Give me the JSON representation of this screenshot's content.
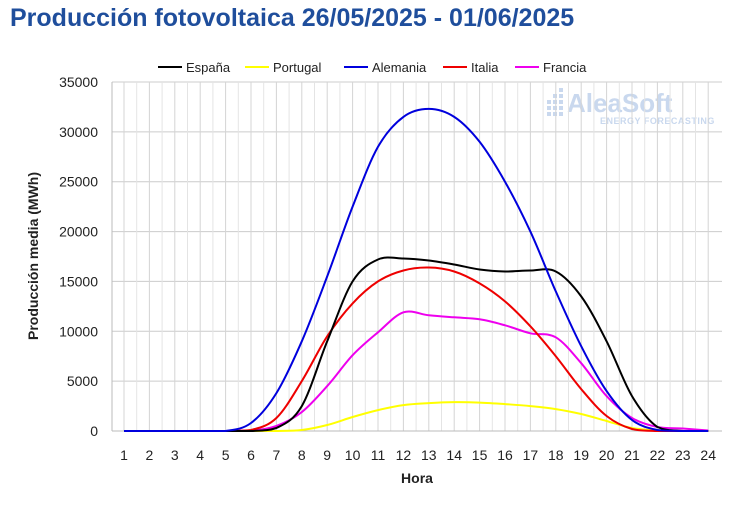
{
  "chart_data": {
    "type": "line",
    "title": "Producción fotovoltaica 26/05/2025 - 01/06/2025",
    "xlabel": "Hora",
    "ylabel": "Producción media (MWh)",
    "x": [
      1,
      2,
      3,
      4,
      5,
      6,
      7,
      8,
      9,
      10,
      11,
      12,
      13,
      14,
      15,
      16,
      17,
      18,
      19,
      20,
      21,
      22,
      23,
      24
    ],
    "xlim": [
      1,
      24
    ],
    "ylim": [
      0,
      35000
    ],
    "yticks": [
      0,
      5000,
      10000,
      15000,
      20000,
      25000,
      30000,
      35000
    ],
    "grid": true,
    "legend_position": "top",
    "series": [
      {
        "name": "España",
        "color": "#000000",
        "values": [
          0,
          0,
          0,
          0,
          0,
          0,
          300,
          2500,
          9000,
          15000,
          17200,
          17300,
          17100,
          16700,
          16200,
          16000,
          16100,
          16000,
          13500,
          9000,
          3500,
          400,
          0,
          0
        ]
      },
      {
        "name": "Portugal",
        "color": "#ffff00",
        "values": [
          0,
          0,
          0,
          0,
          0,
          0,
          0,
          100,
          600,
          1400,
          2100,
          2600,
          2800,
          2900,
          2850,
          2700,
          2500,
          2200,
          1700,
          1000,
          300,
          50,
          0,
          0
        ]
      },
      {
        "name": "Alemania",
        "color": "#0000dd",
        "values": [
          0,
          0,
          0,
          0,
          0,
          800,
          3800,
          9000,
          15500,
          22500,
          28500,
          31500,
          32300,
          31500,
          29000,
          25000,
          20000,
          14000,
          8500,
          4000,
          1100,
          100,
          0,
          0
        ]
      },
      {
        "name": "Italia",
        "color": "#ee0000",
        "values": [
          0,
          0,
          0,
          0,
          0,
          100,
          1300,
          5000,
          9500,
          12800,
          15000,
          16100,
          16400,
          16000,
          14800,
          13000,
          10500,
          7500,
          4200,
          1500,
          200,
          0,
          0,
          0
        ]
      },
      {
        "name": "Francia",
        "color": "#ee00ee",
        "values": [
          0,
          0,
          0,
          0,
          0,
          50,
          500,
          1900,
          4500,
          7600,
          9900,
          11900,
          11600,
          11400,
          11200,
          10600,
          9800,
          9400,
          6800,
          3500,
          1300,
          400,
          250,
          50
        ]
      }
    ]
  },
  "logo": {
    "main": "AleaSoft",
    "sub": "ENERGY FORECASTING"
  }
}
